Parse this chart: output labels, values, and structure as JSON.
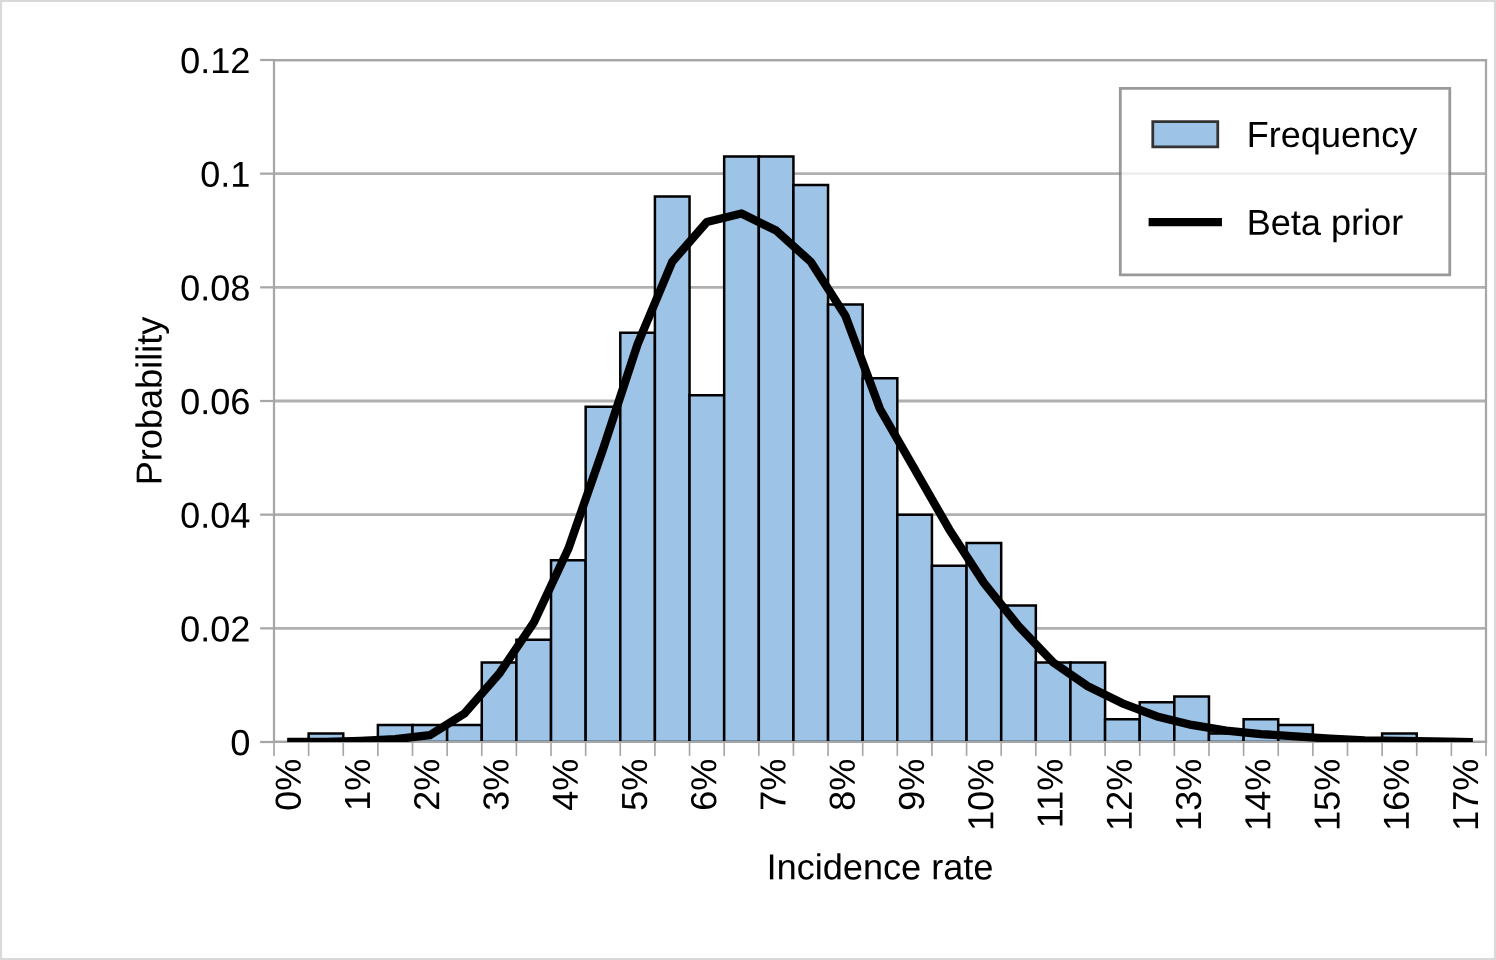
{
  "chart_data": {
    "type": "bar",
    "xlabel": "Incidence rate",
    "ylabel": "Probability",
    "categories": [
      "0%",
      null,
      "1%",
      null,
      "2%",
      null,
      "3%",
      null,
      "4%",
      null,
      "5%",
      null,
      "6%",
      null,
      "7%",
      null,
      "8%",
      null,
      "9%",
      null,
      "10%",
      null,
      "11%",
      null,
      "12%",
      null,
      "13%",
      null,
      "14%",
      null,
      "15%",
      null,
      "16%",
      null,
      "17%"
    ],
    "series": [
      {
        "name": "Frequency",
        "color": "#9dc3e6",
        "values": [
          0,
          0.0015,
          0,
          0.003,
          0.003,
          0.003,
          0.014,
          0.018,
          0.032,
          0.059,
          0.072,
          0.096,
          0.061,
          0.103,
          0.103,
          0.098,
          0.077,
          0.064,
          0.04,
          0.031,
          0.035,
          0.024,
          0.014,
          0.014,
          0.004,
          0.007,
          0.008,
          0.0015,
          0.004,
          0.003,
          0.0005,
          0,
          0.0015,
          0,
          0
        ]
      },
      {
        "name": "Beta prior",
        "type": "line",
        "color": "#000000",
        "values": [
          0,
          0,
          0.0002,
          0.0005,
          0.0012,
          0.005,
          0.012,
          0.021,
          0.034,
          0.0515,
          0.07,
          0.0845,
          0.0915,
          0.093,
          0.09,
          0.0845,
          0.075,
          0.0586,
          0.048,
          0.0374,
          0.028,
          0.0204,
          0.014,
          0.0098,
          0.0068,
          0.0045,
          0.003,
          0.002,
          0.0014,
          0.001,
          0.0006,
          0.0003,
          0.0002,
          0.0001,
          0
        ]
      }
    ],
    "ylim": [
      0,
      0.12
    ],
    "yticks": [
      0,
      0.02,
      0.04,
      0.06,
      0.08,
      0.1,
      0.12
    ],
    "grid": "y",
    "legend": "top right",
    "marker": "none",
    "line_style": "solid"
  }
}
